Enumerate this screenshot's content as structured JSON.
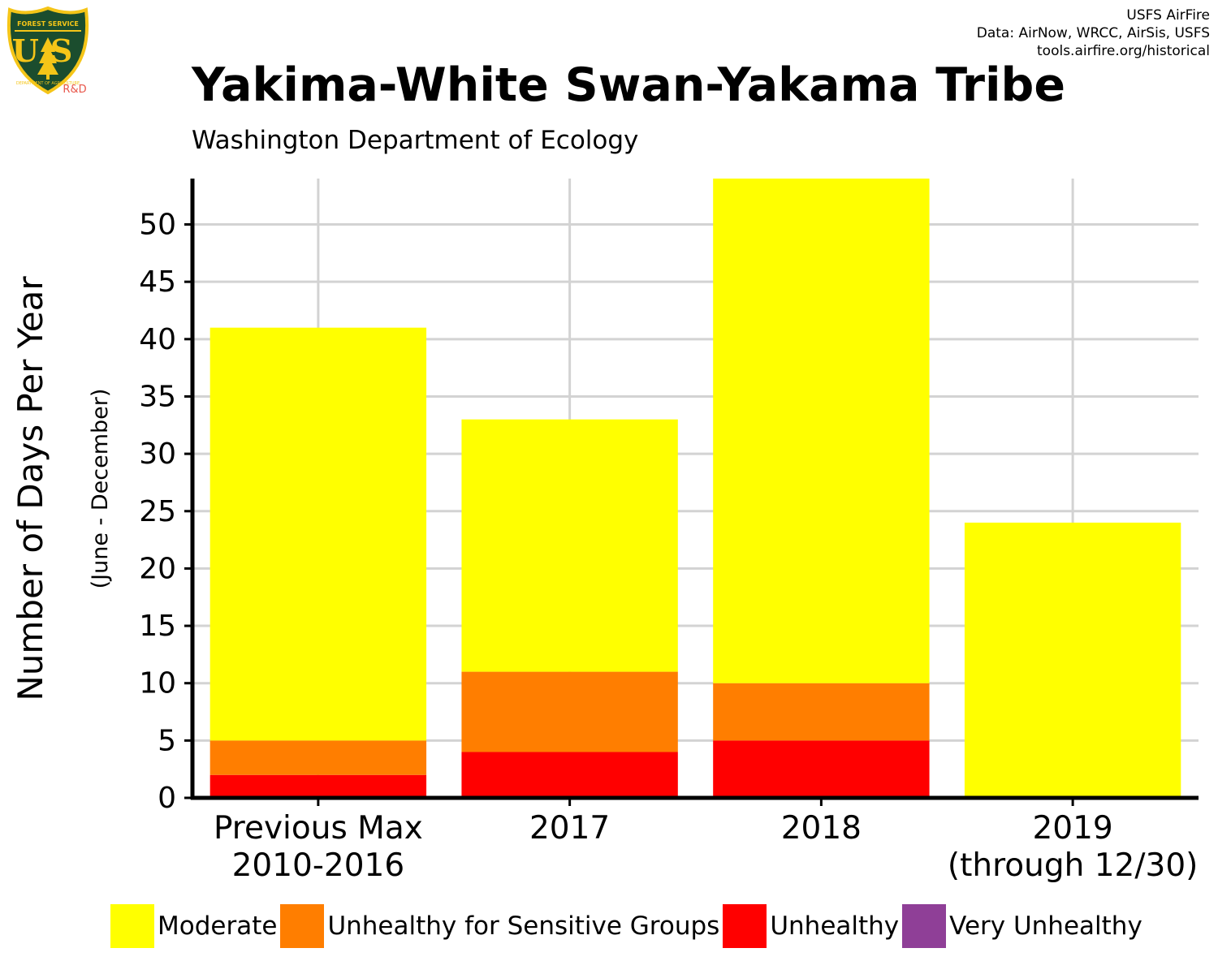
{
  "header": {
    "credits": [
      "USFS AirFire",
      "Data: AirNow, WRCC, AirSis, USFS",
      "tools.airfire.org/historical"
    ],
    "logo": {
      "icon": "usfs-shield-icon",
      "top_text": "FOREST SERVICE",
      "letters": "US",
      "bottom_text": "DEPARTMENT OF AGRICULTURE",
      "badge": "R&D"
    }
  },
  "colors": {
    "moderate": "#FFFF00",
    "usg": "#FF7E00",
    "unhealthy": "#FF0000",
    "very_unhealthy": "#8F3F97",
    "grid": "#D3D3D3",
    "logo_green": "#1B4D2E",
    "logo_gold": "#F5C518",
    "badge_red": "#E8564A"
  },
  "chart_data": {
    "type": "bar",
    "stacked": true,
    "title": "Yakima-White Swan-Yakama Tribe",
    "subtitle": "Washington Department of Ecology",
    "ylabel": "Number of Days Per Year",
    "ylabel_sub": "(June - December)",
    "xlabel": "",
    "categories": [
      [
        "Previous Max",
        "2010-2016"
      ],
      [
        "2017"
      ],
      [
        "2018"
      ],
      [
        "2019",
        "(through 12/30)"
      ]
    ],
    "series": [
      {
        "name": "Unhealthy",
        "color": "#FF0000",
        "values": [
          2,
          4,
          5,
          0
        ]
      },
      {
        "name": "Unhealthy for Sensitive Groups",
        "color": "#FF7E00",
        "values": [
          3,
          7,
          5,
          0
        ]
      },
      {
        "name": "Moderate",
        "color": "#FFFF00",
        "values": [
          36,
          22,
          44,
          24
        ]
      },
      {
        "name": "Very Unhealthy",
        "color": "#8F3F97",
        "values": [
          0,
          0,
          0,
          0
        ]
      }
    ],
    "ylim": [
      0,
      54
    ],
    "yticks": [
      0,
      5,
      10,
      15,
      20,
      25,
      30,
      35,
      40,
      45,
      50
    ],
    "grid": true,
    "legend_position": "bottom",
    "legend": [
      "Moderate",
      "Unhealthy for Sensitive Groups",
      "Unhealthy",
      "Very Unhealthy"
    ]
  }
}
